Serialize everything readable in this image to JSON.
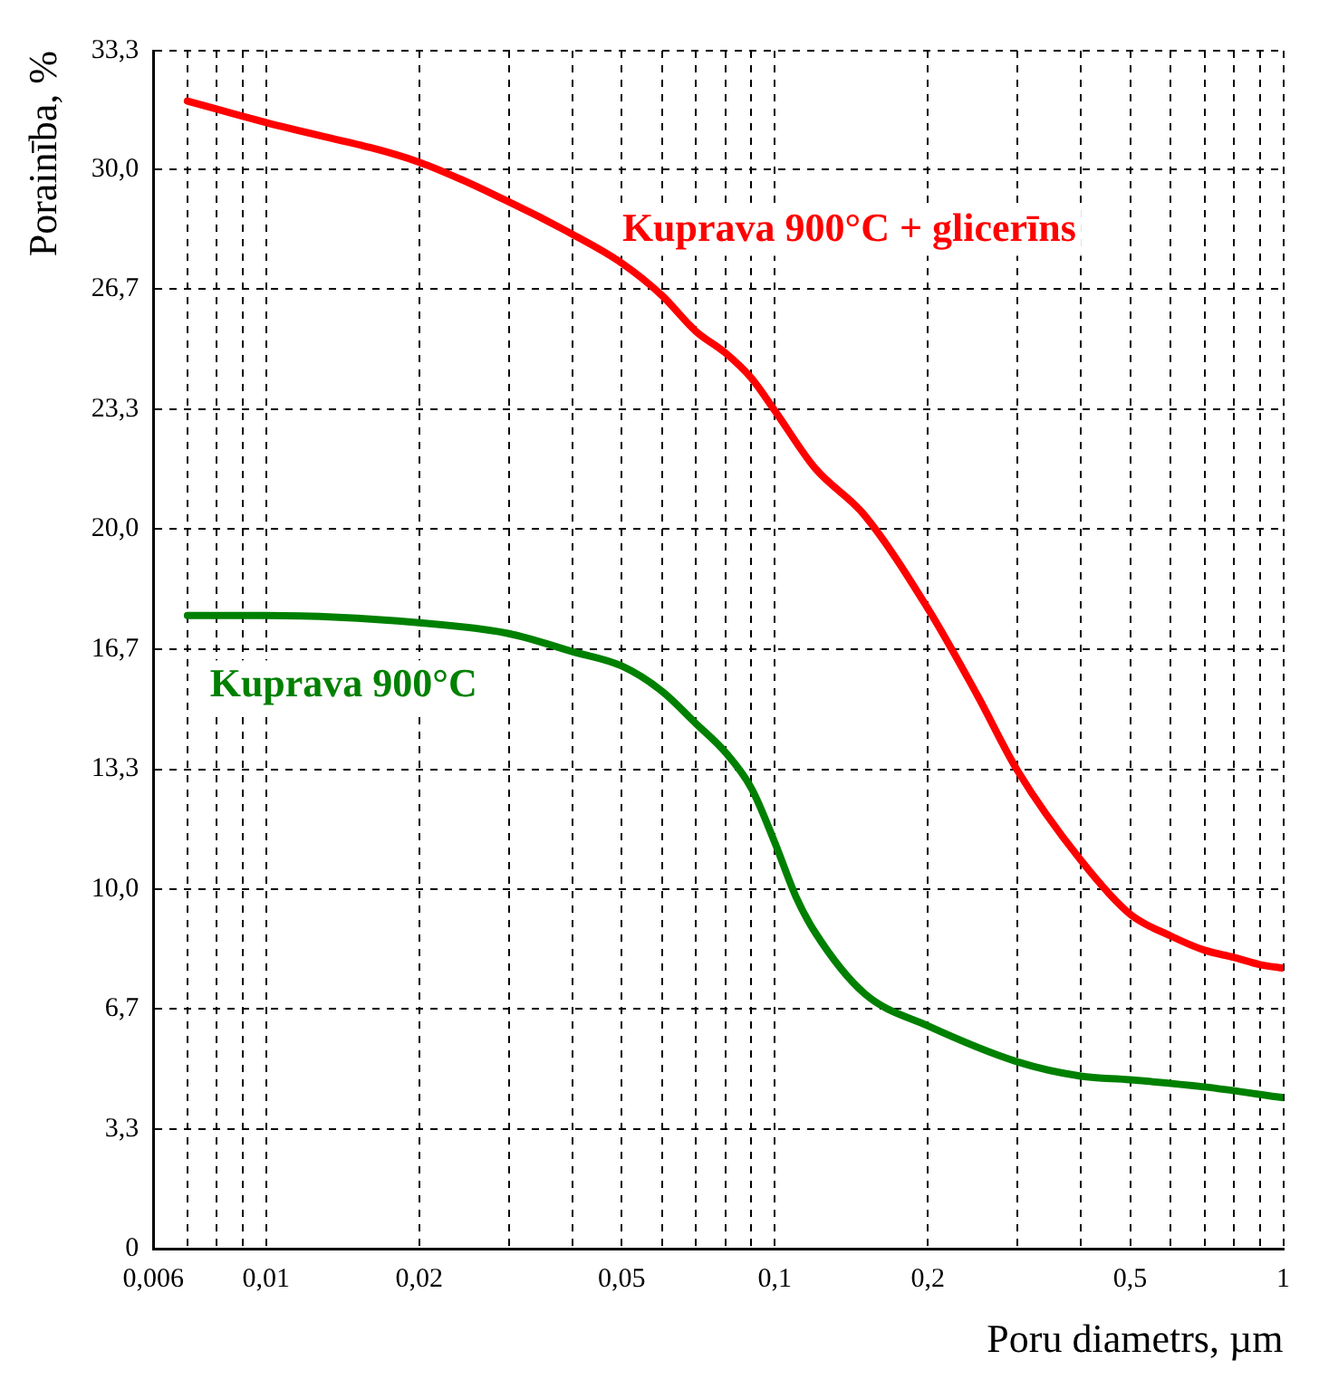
{
  "chart_data": {
    "type": "line",
    "xlabel": "Poru diametrs, µm",
    "ylabel": "Porainība, %",
    "log": "x",
    "grid": true,
    "legend": false,
    "marker": "none",
    "line_style": "solid",
    "xlim": [
      0.006,
      1
    ],
    "ylim": [
      0,
      33.3
    ],
    "xticks": [
      {
        "value": 0.006,
        "label": "0,006"
      },
      {
        "value": 0.007,
        "label": null
      },
      {
        "value": 0.008,
        "label": null
      },
      {
        "value": 0.009,
        "label": null
      },
      {
        "value": 0.01,
        "label": "0,01"
      },
      {
        "value": 0.02,
        "label": "0,02"
      },
      {
        "value": 0.03,
        "label": null
      },
      {
        "value": 0.04,
        "label": null
      },
      {
        "value": 0.05,
        "label": "0,05"
      },
      {
        "value": 0.06,
        "label": null
      },
      {
        "value": 0.07,
        "label": null
      },
      {
        "value": 0.08,
        "label": null
      },
      {
        "value": 0.09,
        "label": null
      },
      {
        "value": 0.1,
        "label": "0,1"
      },
      {
        "value": 0.2,
        "label": "0,2"
      },
      {
        "value": 0.3,
        "label": null
      },
      {
        "value": 0.4,
        "label": null
      },
      {
        "value": 0.5,
        "label": "0,5"
      },
      {
        "value": 0.6,
        "label": null
      },
      {
        "value": 0.7,
        "label": null
      },
      {
        "value": 0.8,
        "label": null
      },
      {
        "value": 0.9,
        "label": null
      },
      1
    ],
    "yticks": [
      0,
      {
        "value": 3.33,
        "label": "3,3"
      },
      {
        "value": 6.67,
        "label": "6,7"
      },
      {
        "value": 10,
        "label": "10,0"
      },
      {
        "value": 13.33,
        "label": "13,3"
      },
      {
        "value": 16.67,
        "label": "16,7"
      },
      {
        "value": 20,
        "label": "20,0"
      },
      {
        "value": 23.33,
        "label": "23,3"
      },
      {
        "value": 26.67,
        "label": "26,7"
      },
      {
        "value": 30,
        "label": "30,0"
      },
      {
        "value": 33.3,
        "label": "33,3"
      }
    ],
    "series": [
      {
        "name": "Kuprava 900°C + glicerīns",
        "color": "#ff0000",
        "x": [
          0.007,
          0.01,
          0.02,
          0.03,
          0.04,
          0.05,
          0.06,
          0.07,
          0.08,
          0.09,
          0.1,
          0.12,
          0.15,
          0.2,
          0.25,
          0.3,
          0.4,
          0.5,
          0.6,
          0.7,
          0.8,
          0.9,
          1
        ],
        "values": [
          31.9,
          31.3,
          30.2,
          29.1,
          28.2,
          27.4,
          26.5,
          25.5,
          24.9,
          24.2,
          23.3,
          21.7,
          20.4,
          17.8,
          15.4,
          13.3,
          10.8,
          9.3,
          8.7,
          8.3,
          8.1,
          7.9,
          7.8
        ]
      },
      {
        "name": "Kuprava 900°C",
        "color": "#008000",
        "x": [
          0.007,
          0.01,
          0.02,
          0.03,
          0.04,
          0.05,
          0.06,
          0.07,
          0.08,
          0.09,
          0.1,
          0.11,
          0.12,
          0.15,
          0.2,
          0.3,
          0.4,
          0.5,
          0.7,
          1
        ],
        "values": [
          17.6,
          17.6,
          17.4,
          17.1,
          16.6,
          16.2,
          15.5,
          14.6,
          13.8,
          12.8,
          11.3,
          9.8,
          8.8,
          7.1,
          6.2,
          5.2,
          4.8,
          4.7,
          4.5,
          4.2
        ]
      }
    ]
  }
}
